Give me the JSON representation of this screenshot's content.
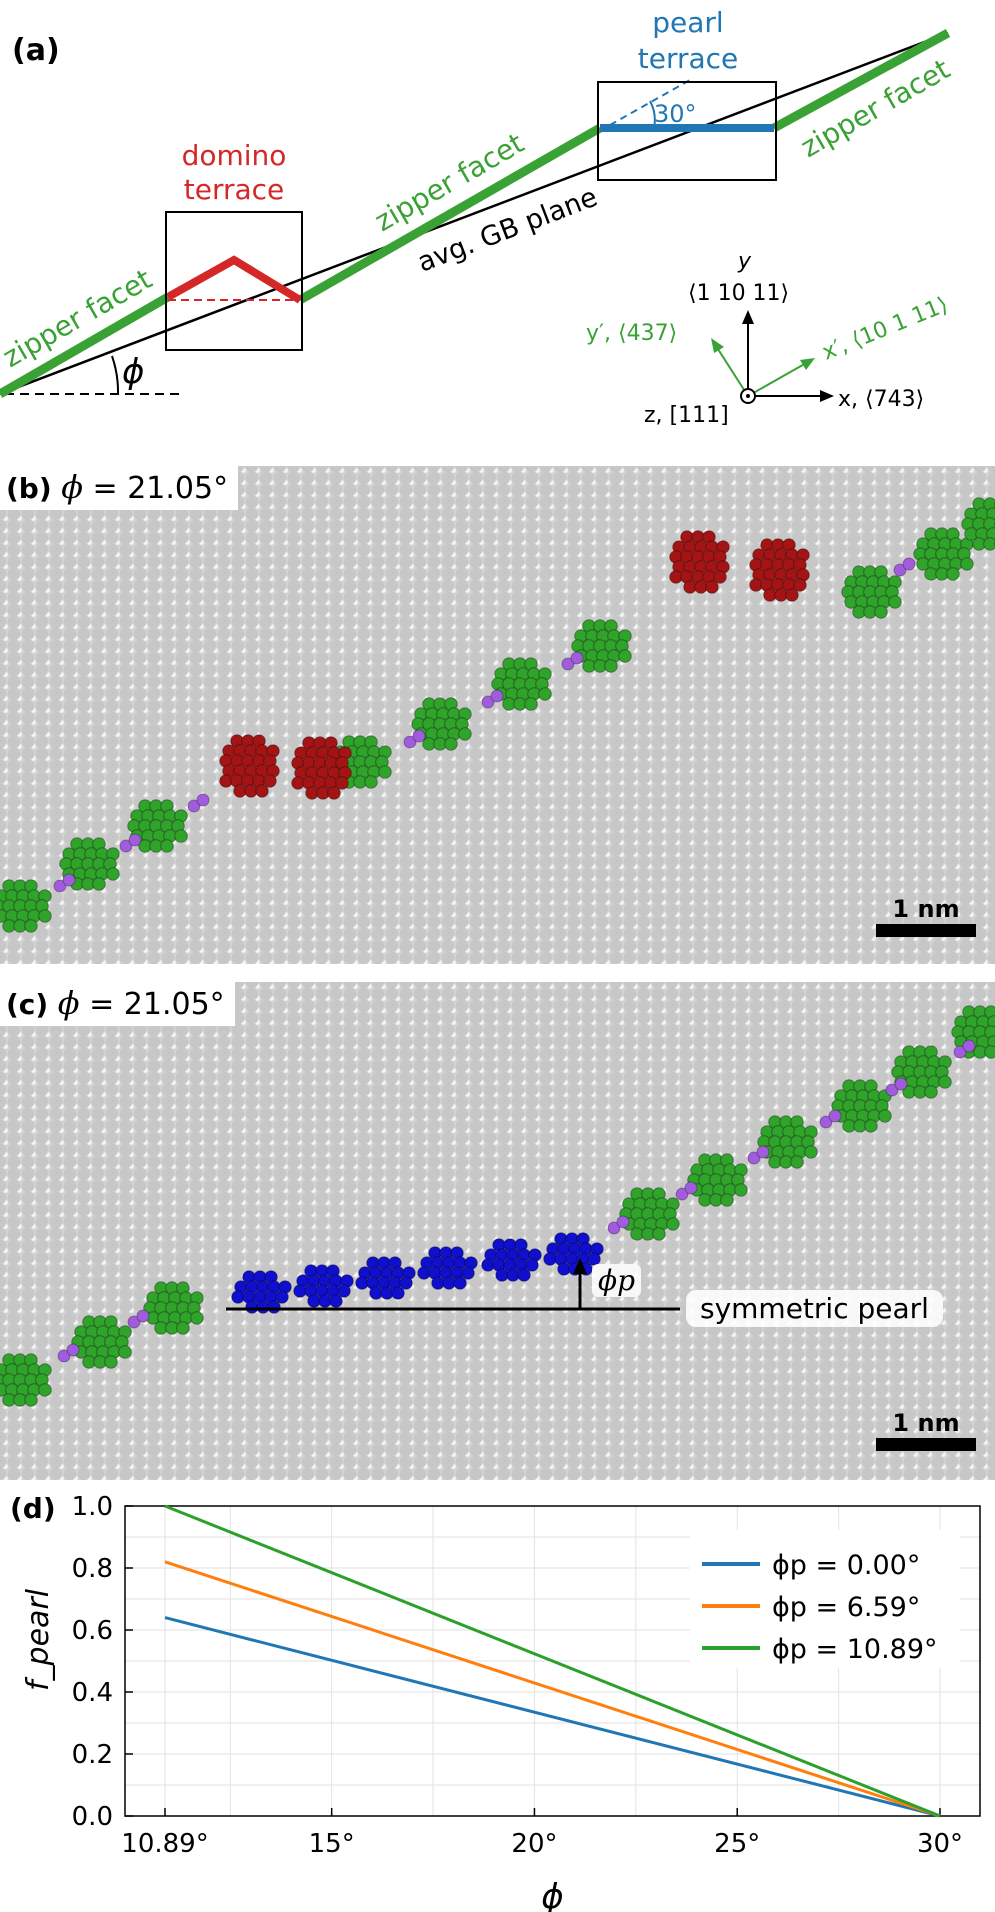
{
  "panel_a": {
    "label": "(a)",
    "domino_label": [
      "domino",
      "terrace"
    ],
    "pearl_label": [
      "pearl",
      "terrace"
    ],
    "zipper_label": "zipper facet",
    "gb_plane_label": "avg. GB plane",
    "angle_30": "30°",
    "phi_symbol": "ϕ",
    "axes": {
      "y_name": "y",
      "y_dir": "⟨1 10 11⟩",
      "yp_label": "y′, ⟨437⟩",
      "xp_label": "x′, ⟨10 1 11⟩",
      "x_label": "x, ⟨743⟩",
      "z_label": "z, [111]"
    },
    "colors": {
      "zipper": "#3aa135",
      "domino": "#d62728",
      "pearl": "#1f77b4"
    }
  },
  "panel_b": {
    "label": "(b)",
    "phi_text": "ϕ",
    "eq_text": " = 21.05°",
    "scale": "1 nm"
  },
  "panel_c": {
    "label": "(c)",
    "phi_text": "ϕ",
    "eq_text": " = 21.05°",
    "scale": "1 nm",
    "phi_p": "ϕp",
    "annotation": "symmetric pearl"
  },
  "panel_d": {
    "label": "(d)"
  },
  "chart_data": {
    "type": "line",
    "xlabel": "ϕ",
    "ylabel": "f_pearl",
    "xlim": [
      10.89,
      30
    ],
    "ylim": [
      0,
      1
    ],
    "xticks": [
      "10.89°",
      "15°",
      "20°",
      "25°",
      "30°"
    ],
    "xtick_values": [
      10.89,
      15,
      20,
      25,
      30
    ],
    "yticks": [
      "0.0",
      "0.2",
      "0.4",
      "0.6",
      "0.8",
      "1.0"
    ],
    "grid": true,
    "legend_position": "top-right",
    "series": [
      {
        "name": "ϕp =   0.00°",
        "color": "#1f77b4",
        "x": [
          10.89,
          30
        ],
        "y": [
          0.64,
          0.0
        ]
      },
      {
        "name": "ϕp =   6.59°",
        "color": "#ff7f0e",
        "x": [
          10.89,
          30
        ],
        "y": [
          0.82,
          0.0
        ]
      },
      {
        "name": "ϕp = 10.89°",
        "color": "#2ca02c",
        "x": [
          10.89,
          30
        ],
        "y": [
          1.0,
          0.0
        ]
      }
    ]
  }
}
